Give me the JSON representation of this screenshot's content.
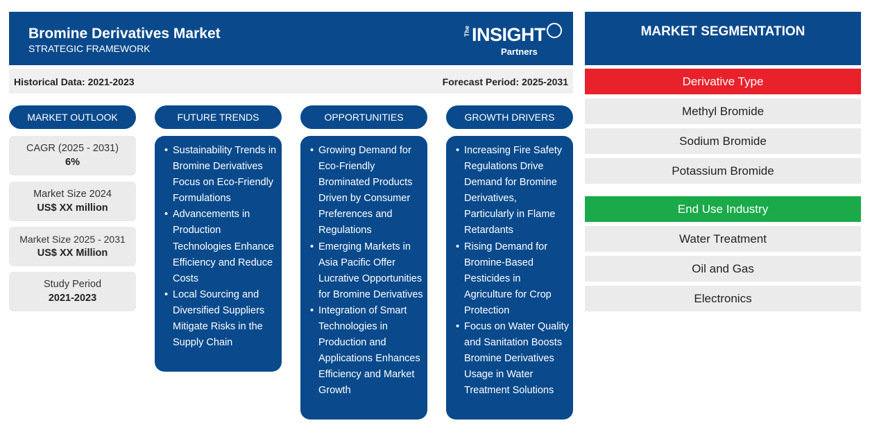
{
  "header": {
    "title": "Bromine Derivatives Market",
    "subtitle": "STRATEGIC FRAMEWORK",
    "logo": {
      "the": "The",
      "main": "INSIGHT",
      "partners": "Partners"
    }
  },
  "info_bar": {
    "historical": "Historical Data: 2021-2023",
    "forecast": "Forecast Period: 2025-2031"
  },
  "market_outlook": {
    "heading": "MARKET OUTLOOK",
    "stats": [
      {
        "label": "CAGR (2025 - 2031)",
        "value": "6%"
      },
      {
        "label": "Market Size 2024",
        "value": "US$ XX million"
      },
      {
        "label": "Market Size 2025 - 2031",
        "value": "US$ XX Million"
      },
      {
        "label": "Study Period",
        "value": "2021-2023"
      }
    ]
  },
  "future_trends": {
    "heading": "FUTURE TRENDS",
    "items": [
      "Sustainability Trends in Bromine Derivatives Focus on Eco-Friendly Formulations",
      "Advancements in Production Technologies Enhance Efficiency and Reduce Costs",
      "Local Sourcing and Diversified Suppliers Mitigate Risks in the Supply Chain"
    ]
  },
  "opportunities": {
    "heading": "OPPORTUNITIES",
    "items": [
      "Growing Demand for Eco-Friendly Brominated Products Driven by Consumer Preferences and Regulations",
      "Emerging Markets in Asia Pacific Offer Lucrative Opportunities for Bromine Derivatives",
      "Integration of Smart Technologies in Production and Applications Enhances Efficiency and Market Growth"
    ]
  },
  "growth_drivers": {
    "heading": "GROWTH DRIVERS",
    "items": [
      "Increasing Fire Safety Regulations Drive Demand for Bromine Derivatives, Particularly in Flame Retardants",
      "Rising Demand for Bromine-Based Pesticides in Agriculture for Crop Protection",
      "Focus on Water Quality and Sanitation Boosts Bromine Derivatives Usage in Water Treatment Solutions"
    ]
  },
  "segmentation": {
    "heading": "MARKET SEGMENTATION",
    "categories": [
      {
        "name": "Derivative Type",
        "color": "#e8212b",
        "items": [
          "Methyl Bromide",
          "Sodium Bromide",
          "Potassium Bromide"
        ]
      },
      {
        "name": "End Use Industry",
        "color": "#1aaa4a",
        "items": [
          "Water Treatment",
          "Oil and Gas",
          "Electronics"
        ]
      }
    ]
  },
  "colors": {
    "primary": "#0a4a8c",
    "panel": "#ebebeb"
  }
}
